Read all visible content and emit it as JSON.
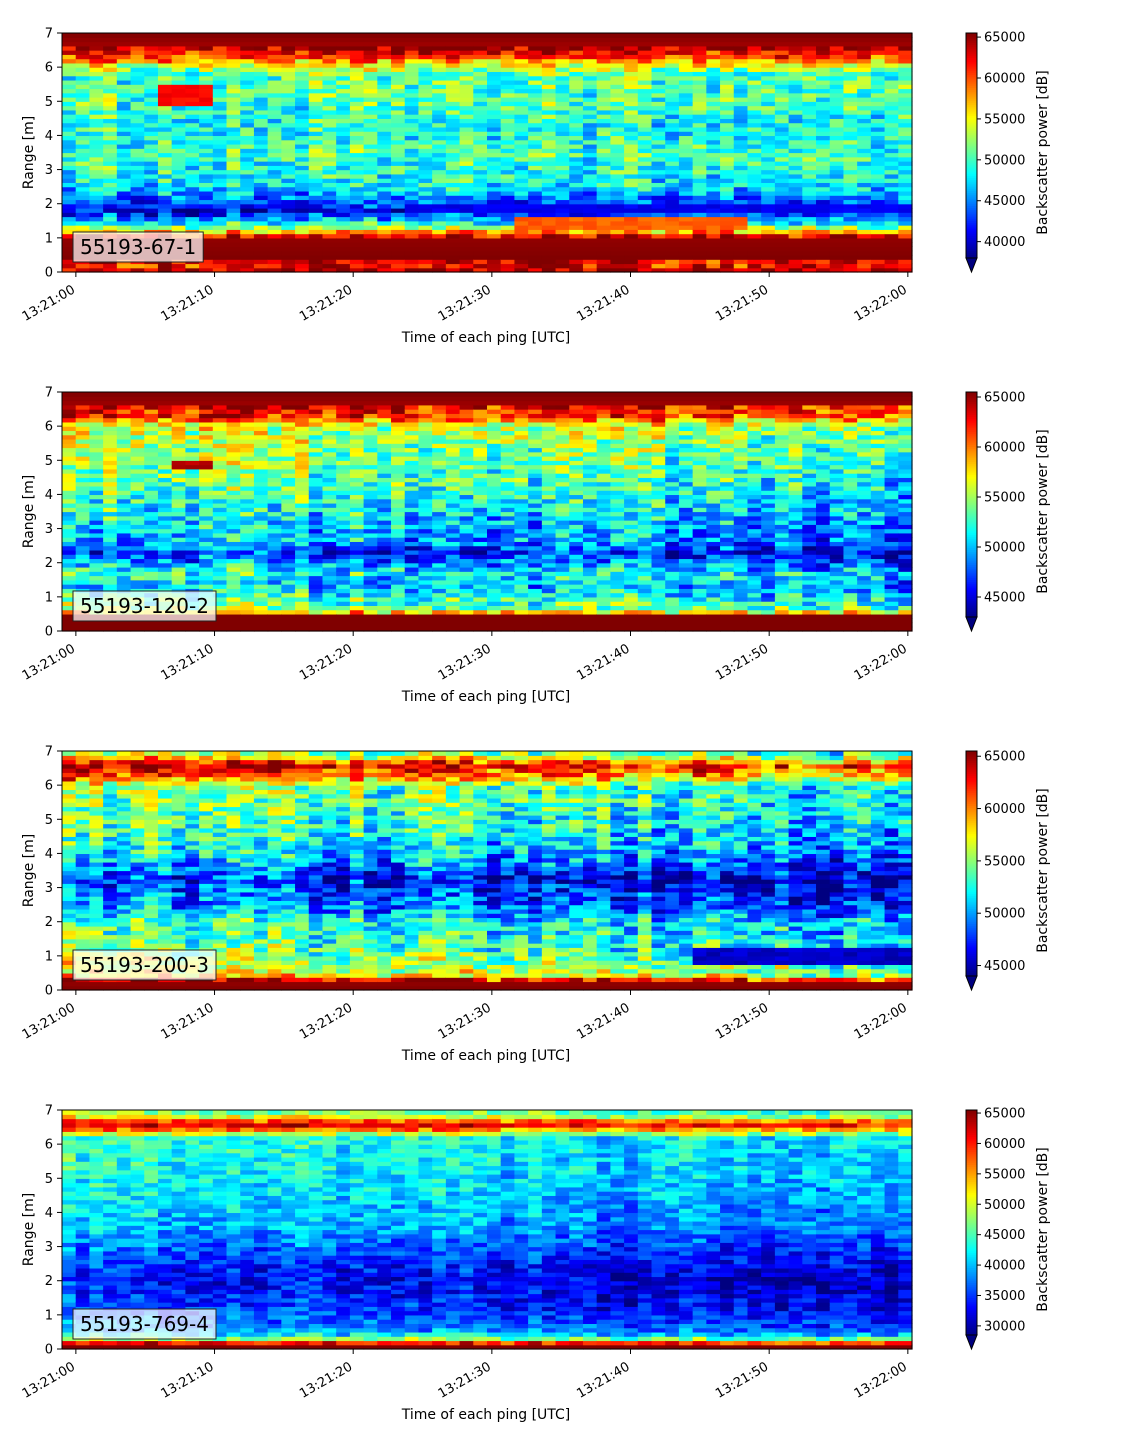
{
  "chart_data": [
    {
      "type": "heatmap",
      "panel_label": "55193-67-1",
      "ylabel": "Range [m]",
      "xlabel": "Time of each ping [UTC]",
      "ylim": [
        0,
        7
      ],
      "yticks": [
        "0",
        "1",
        "2",
        "3",
        "4",
        "5",
        "6",
        "7"
      ],
      "xticks": [
        "13:21:00",
        "13:21:10",
        "13:21:20",
        "13:21:30",
        "13:21:40",
        "13:21:50",
        "13:22:00"
      ],
      "xrange_s": [
        -1,
        60.3
      ],
      "colorbar": {
        "label": "Backscatter power [dB]",
        "ticks": [
          "65000",
          "60000",
          "55000",
          "50000",
          "45000",
          "40000"
        ],
        "tick_values": [
          65000,
          60000,
          55000,
          50000,
          45000,
          40000
        ],
        "vmin": 38000,
        "vmax": 65500,
        "colormap": "jet",
        "extend": "min"
      },
      "profile": [
        {
          "r": 0.0,
          "v": 65500
        },
        {
          "r": 0.25,
          "v": 61000
        },
        {
          "r": 0.4,
          "v": 65500
        },
        {
          "r": 1.0,
          "v": 65000
        },
        {
          "r": 1.15,
          "v": 59000
        },
        {
          "r": 1.35,
          "v": 51000
        },
        {
          "r": 1.5,
          "v": 47000
        },
        {
          "r": 1.8,
          "v": 40500
        },
        {
          "r": 2.05,
          "v": 43500
        },
        {
          "r": 2.5,
          "v": 48000
        },
        {
          "r": 3.5,
          "v": 50000
        },
        {
          "r": 4.3,
          "v": 48500
        },
        {
          "r": 5.0,
          "v": 50500
        },
        {
          "r": 5.8,
          "v": 50500
        },
        {
          "r": 6.1,
          "v": 55000
        },
        {
          "r": 6.3,
          "v": 61000
        },
        {
          "r": 6.6,
          "v": 64500
        },
        {
          "r": 7.0,
          "v": 65500
        }
      ],
      "noise": 4500,
      "trend_per_s": 0,
      "features": [
        {
          "t0": 6,
          "t1": 9.5,
          "r0": 4.9,
          "r1": 5.5,
          "v": 62000
        },
        {
          "t0": 32,
          "t1": 48,
          "r0": 1.2,
          "r1": 1.6,
          "v": 59500
        },
        {
          "t0": 24,
          "t1": 60,
          "r0": 1.7,
          "r1": 2.0,
          "v": 41000
        }
      ]
    },
    {
      "type": "heatmap",
      "panel_label": "55193-120-2",
      "ylabel": "Range [m]",
      "xlabel": "Time of each ping [UTC]",
      "ylim": [
        0,
        7
      ],
      "yticks": [
        "0",
        "1",
        "2",
        "3",
        "4",
        "5",
        "6",
        "7"
      ],
      "xticks": [
        "13:21:00",
        "13:21:10",
        "13:21:20",
        "13:21:30",
        "13:21:40",
        "13:21:50",
        "13:22:00"
      ],
      "xrange_s": [
        -1,
        60.3
      ],
      "colorbar": {
        "label": "Backscatter power [dB]",
        "ticks": [
          "65000",
          "60000",
          "55000",
          "50000",
          "45000"
        ],
        "tick_values": [
          65000,
          60000,
          55000,
          50000,
          45000
        ],
        "vmin": 43000,
        "vmax": 65500,
        "colormap": "jet",
        "extend": "min"
      },
      "profile": [
        {
          "r": 0.0,
          "v": 65500
        },
        {
          "r": 0.5,
          "v": 65500
        },
        {
          "r": 0.6,
          "v": 56000
        },
        {
          "r": 0.9,
          "v": 54000
        },
        {
          "r": 1.3,
          "v": 51000
        },
        {
          "r": 1.7,
          "v": 53000
        },
        {
          "r": 2.3,
          "v": 47500
        },
        {
          "r": 2.6,
          "v": 50500
        },
        {
          "r": 3.2,
          "v": 51500
        },
        {
          "r": 4.0,
          "v": 53500
        },
        {
          "r": 5.0,
          "v": 55000
        },
        {
          "r": 6.0,
          "v": 57000
        },
        {
          "r": 6.3,
          "v": 63000
        },
        {
          "r": 6.7,
          "v": 65000
        },
        {
          "r": 7.0,
          "v": 65500
        }
      ],
      "noise": 4200,
      "trend_per_s": -45,
      "features": [
        {
          "t0": 7,
          "t1": 9.5,
          "r0": 4.75,
          "r1": 5.0,
          "v": 64500
        }
      ]
    },
    {
      "type": "heatmap",
      "panel_label": "55193-200-3",
      "ylabel": "Range [m]",
      "xlabel": "Time of each ping [UTC]",
      "ylim": [
        0,
        7
      ],
      "yticks": [
        "0",
        "1",
        "2",
        "3",
        "4",
        "5",
        "6",
        "7"
      ],
      "xticks": [
        "13:21:00",
        "13:21:10",
        "13:21:20",
        "13:21:30",
        "13:21:40",
        "13:21:50",
        "13:22:00"
      ],
      "xrange_s": [
        -1,
        60.3
      ],
      "colorbar": {
        "label": "Backscatter power [dB]",
        "ticks": [
          "65000",
          "60000",
          "55000",
          "50000",
          "45000"
        ],
        "tick_values": [
          65000,
          60000,
          55000,
          50000,
          45000
        ],
        "vmin": 44000,
        "vmax": 65500,
        "colormap": "jet",
        "extend": "min"
      },
      "profile": [
        {
          "r": 0.0,
          "v": 65500
        },
        {
          "r": 0.3,
          "v": 65000
        },
        {
          "r": 0.45,
          "v": 58000
        },
        {
          "r": 0.8,
          "v": 57000
        },
        {
          "r": 1.2,
          "v": 55000
        },
        {
          "r": 2.0,
          "v": 54000
        },
        {
          "r": 2.5,
          "v": 50500
        },
        {
          "r": 3.3,
          "v": 48500
        },
        {
          "r": 4.0,
          "v": 52500
        },
        {
          "r": 5.0,
          "v": 54500
        },
        {
          "r": 6.0,
          "v": 55500
        },
        {
          "r": 6.2,
          "v": 61000
        },
        {
          "r": 6.6,
          "v": 65000
        },
        {
          "r": 6.85,
          "v": 58000
        },
        {
          "r": 7.0,
          "v": 55000
        }
      ],
      "noise": 4200,
      "trend_per_s": -60,
      "features": [
        {
          "t0": 44,
          "t1": 60,
          "r0": 0.8,
          "r1": 1.3,
          "v": 45500
        }
      ]
    },
    {
      "type": "heatmap",
      "panel_label": "55193-769-4",
      "ylabel": "Range [m]",
      "xlabel": "Time of each ping [UTC]",
      "ylim": [
        0,
        7
      ],
      "yticks": [
        "0",
        "1",
        "2",
        "3",
        "4",
        "5",
        "6",
        "7"
      ],
      "xticks": [
        "13:21:00",
        "13:21:10",
        "13:21:20",
        "13:21:30",
        "13:21:40",
        "13:21:50",
        "13:22:00"
      ],
      "xrange_s": [
        -1,
        60.3
      ],
      "colorbar": {
        "label": "Backscatter power [dB]",
        "ticks": [
          "65000",
          "60000",
          "55000",
          "50000",
          "45000",
          "40000",
          "35000",
          "30000"
        ],
        "tick_values": [
          65000,
          60000,
          55000,
          50000,
          45000,
          40000,
          35000,
          30000
        ],
        "vmin": 28500,
        "vmax": 65500,
        "colormap": "jet",
        "extend": "min"
      },
      "profile": [
        {
          "r": 0.0,
          "v": 65500
        },
        {
          "r": 0.15,
          "v": 65500
        },
        {
          "r": 0.25,
          "v": 56000
        },
        {
          "r": 0.35,
          "v": 45000
        },
        {
          "r": 0.6,
          "v": 39000
        },
        {
          "r": 1.2,
          "v": 36000
        },
        {
          "r": 2.0,
          "v": 34000
        },
        {
          "r": 2.8,
          "v": 37000
        },
        {
          "r": 3.5,
          "v": 40500
        },
        {
          "r": 4.5,
          "v": 42500
        },
        {
          "r": 5.5,
          "v": 44000
        },
        {
          "r": 6.2,
          "v": 44500
        },
        {
          "r": 6.4,
          "v": 56000
        },
        {
          "r": 6.6,
          "v": 65000
        },
        {
          "r": 6.8,
          "v": 52000
        },
        {
          "r": 7.0,
          "v": 46000
        }
      ],
      "noise": 4500,
      "trend_per_s": -70,
      "features": []
    }
  ]
}
